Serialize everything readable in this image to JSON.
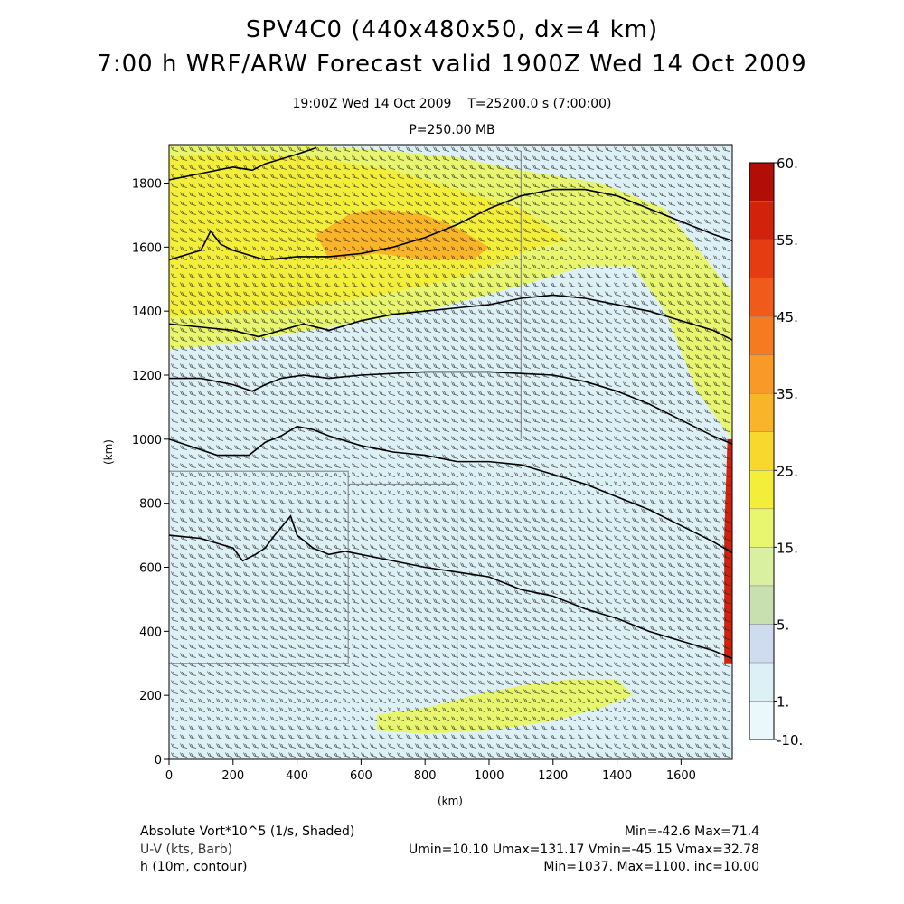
{
  "header": {
    "title_line1": "SPV4C0 (440x480x50, dx=4 km)",
    "title_line2": "7:00 h WRF/ARW Forecast valid 1900Z Wed 14 Oct 2009",
    "subtitle_time": "19:00Z Wed 14 Oct 2009    T=25200.0 s (7:00:00)",
    "subtitle_level": "P=250.00 MB"
  },
  "colors": {
    "plot_background": "#dcf0f5",
    "contour": "#000000",
    "barb": "#222222",
    "state_lines": "#7a7a7a"
  },
  "chart_data": {
    "type": "heatmap",
    "xlabel": "(km)",
    "ylabel": "(km)",
    "xlim": [
      0,
      1760
    ],
    "ylim": [
      0,
      1920
    ],
    "xticks": [
      0,
      200,
      400,
      600,
      800,
      1000,
      1200,
      1400,
      1600
    ],
    "yticks": [
      0,
      200,
      400,
      600,
      800,
      1000,
      1200,
      1400,
      1600,
      1800
    ],
    "colorbar": {
      "labels": [
        "60.",
        "55.",
        "45.",
        "35.",
        "25.",
        "15.",
        "5.",
        "1.",
        "-10."
      ],
      "levels": [
        -10,
        -5,
        1,
        3,
        5,
        10,
        15,
        20,
        25,
        30,
        35,
        40,
        45,
        50,
        55,
        60
      ],
      "colors": [
        "#eaf7fb",
        "#dcf0f5",
        "#cfdcef",
        "#c8e0b0",
        "#d8f0a0",
        "#e8f56e",
        "#f3ee3a",
        "#f8d82c",
        "#fab428",
        "#f99a26",
        "#f57a20",
        "#f05a1a",
        "#e53c12",
        "#d2220c",
        "#b20e06"
      ]
    },
    "contours": [
      {
        "points": [
          [
            0,
            700
          ],
          [
            100,
            690
          ],
          [
            200,
            660
          ],
          [
            230,
            620
          ],
          [
            270,
            640
          ],
          [
            300,
            660
          ],
          [
            330,
            700
          ],
          [
            380,
            760
          ],
          [
            400,
            700
          ],
          [
            450,
            660
          ],
          [
            500,
            640
          ],
          [
            550,
            650
          ],
          [
            650,
            630
          ],
          [
            800,
            600
          ],
          [
            1000,
            570
          ],
          [
            1100,
            530
          ],
          [
            1200,
            510
          ],
          [
            1300,
            470
          ],
          [
            1400,
            440
          ],
          [
            1500,
            400
          ],
          [
            1600,
            370
          ],
          [
            1700,
            340
          ],
          [
            1760,
            315
          ]
        ]
      },
      {
        "points": [
          [
            0,
            1000
          ],
          [
            60,
            980
          ],
          [
            150,
            950
          ],
          [
            250,
            950
          ],
          [
            300,
            990
          ],
          [
            350,
            1010
          ],
          [
            400,
            1040
          ],
          [
            450,
            1030
          ],
          [
            500,
            1010
          ],
          [
            600,
            980
          ],
          [
            700,
            960
          ],
          [
            800,
            950
          ],
          [
            900,
            930
          ],
          [
            1000,
            930
          ],
          [
            1100,
            920
          ],
          [
            1200,
            890
          ],
          [
            1300,
            860
          ],
          [
            1400,
            820
          ],
          [
            1500,
            780
          ],
          [
            1600,
            730
          ],
          [
            1700,
            680
          ],
          [
            1760,
            645
          ]
        ]
      },
      {
        "points": [
          [
            0,
            1190
          ],
          [
            100,
            1190
          ],
          [
            200,
            1170
          ],
          [
            260,
            1150
          ],
          [
            300,
            1170
          ],
          [
            350,
            1190
          ],
          [
            420,
            1200
          ],
          [
            500,
            1190
          ],
          [
            600,
            1200
          ],
          [
            800,
            1210
          ],
          [
            1000,
            1210
          ],
          [
            1200,
            1200
          ],
          [
            1300,
            1180
          ],
          [
            1400,
            1150
          ],
          [
            1500,
            1110
          ],
          [
            1600,
            1060
          ],
          [
            1700,
            1010
          ],
          [
            1760,
            985
          ]
        ]
      },
      {
        "points": [
          [
            0,
            1360
          ],
          [
            100,
            1350
          ],
          [
            200,
            1340
          ],
          [
            280,
            1320
          ],
          [
            350,
            1340
          ],
          [
            420,
            1360
          ],
          [
            500,
            1340
          ],
          [
            600,
            1370
          ],
          [
            700,
            1390
          ],
          [
            800,
            1400
          ],
          [
            900,
            1410
          ],
          [
            1000,
            1420
          ],
          [
            1100,
            1440
          ],
          [
            1200,
            1450
          ],
          [
            1300,
            1440
          ],
          [
            1400,
            1420
          ],
          [
            1500,
            1400
          ],
          [
            1600,
            1370
          ],
          [
            1700,
            1340
          ],
          [
            1760,
            1310
          ]
        ]
      },
      {
        "points": [
          [
            0,
            1560
          ],
          [
            100,
            1590
          ],
          [
            130,
            1650
          ],
          [
            160,
            1610
          ],
          [
            200,
            1590
          ],
          [
            300,
            1560
          ],
          [
            400,
            1570
          ],
          [
            500,
            1570
          ],
          [
            600,
            1580
          ],
          [
            700,
            1600
          ],
          [
            800,
            1630
          ],
          [
            900,
            1670
          ],
          [
            1000,
            1720
          ],
          [
            1100,
            1760
          ],
          [
            1200,
            1780
          ],
          [
            1300,
            1780
          ],
          [
            1400,
            1760
          ],
          [
            1500,
            1720
          ],
          [
            1600,
            1680
          ],
          [
            1700,
            1640
          ],
          [
            1760,
            1620
          ]
        ]
      },
      {
        "points": [
          [
            0,
            1810
          ],
          [
            100,
            1830
          ],
          [
            200,
            1850
          ],
          [
            260,
            1840
          ],
          [
            300,
            1860
          ],
          [
            400,
            1890
          ],
          [
            460,
            1910
          ]
        ]
      }
    ],
    "vorticity_fields": [
      {
        "name": "green_band",
        "value": 10,
        "polygon": [
          [
            0,
            1280
          ],
          [
            200,
            1300
          ],
          [
            500,
            1350
          ],
          [
            800,
            1400
          ],
          [
            1100,
            1480
          ],
          [
            1300,
            1540
          ],
          [
            1450,
            1540
          ],
          [
            1550,
            1400
          ],
          [
            1650,
            1150
          ],
          [
            1760,
            1000
          ],
          [
            1760,
            1460
          ],
          [
            1550,
            1720
          ],
          [
            1350,
            1800
          ],
          [
            1100,
            1840
          ],
          [
            900,
            1880
          ],
          [
            700,
            1900
          ],
          [
            400,
            1920
          ],
          [
            0,
            1920
          ]
        ]
      },
      {
        "name": "yellow_core",
        "value": 18,
        "polygon": [
          [
            0,
            1380
          ],
          [
            300,
            1400
          ],
          [
            600,
            1440
          ],
          [
            900,
            1500
          ],
          [
            1150,
            1600
          ],
          [
            1250,
            1620
          ],
          [
            1100,
            1720
          ],
          [
            900,
            1780
          ],
          [
            700,
            1840
          ],
          [
            450,
            1880
          ],
          [
            200,
            1900
          ],
          [
            0,
            1880
          ]
        ]
      },
      {
        "name": "orange_streak",
        "value": 27,
        "polygon": [
          [
            500,
            1560
          ],
          [
            650,
            1580
          ],
          [
            800,
            1560
          ],
          [
            950,
            1560
          ],
          [
            1000,
            1600
          ],
          [
            900,
            1660
          ],
          [
            800,
            1700
          ],
          [
            650,
            1720
          ],
          [
            560,
            1700
          ],
          [
            460,
            1640
          ]
        ]
      },
      {
        "name": "south_green",
        "value": 12,
        "polygon": [
          [
            650,
            140
          ],
          [
            800,
            160
          ],
          [
            950,
            200
          ],
          [
            1100,
            230
          ],
          [
            1250,
            250
          ],
          [
            1400,
            250
          ],
          [
            1450,
            200
          ],
          [
            1350,
            160
          ],
          [
            1200,
            120
          ],
          [
            1000,
            90
          ],
          [
            800,
            80
          ],
          [
            650,
            90
          ]
        ]
      },
      {
        "name": "east_edge",
        "value": 50,
        "polygon": [
          [
            1735,
            300
          ],
          [
            1760,
            300
          ],
          [
            1760,
            1000
          ],
          [
            1745,
            1000
          ],
          [
            1735,
            700
          ]
        ]
      }
    ]
  },
  "footer": {
    "left_line1": "Absolute Vort*10^5 (1/s, Shaded)",
    "left_line2": "U-V (kts, Barb)",
    "left_line3": "h (10m, contour)",
    "right_line1": "Min=-42.6 Max=71.4",
    "right_line2": "Umin=10.10 Umax=131.17 Vmin=-45.15 Vmax=32.78",
    "right_line3": "Min=1037. Max=1100. inc=10.00"
  }
}
